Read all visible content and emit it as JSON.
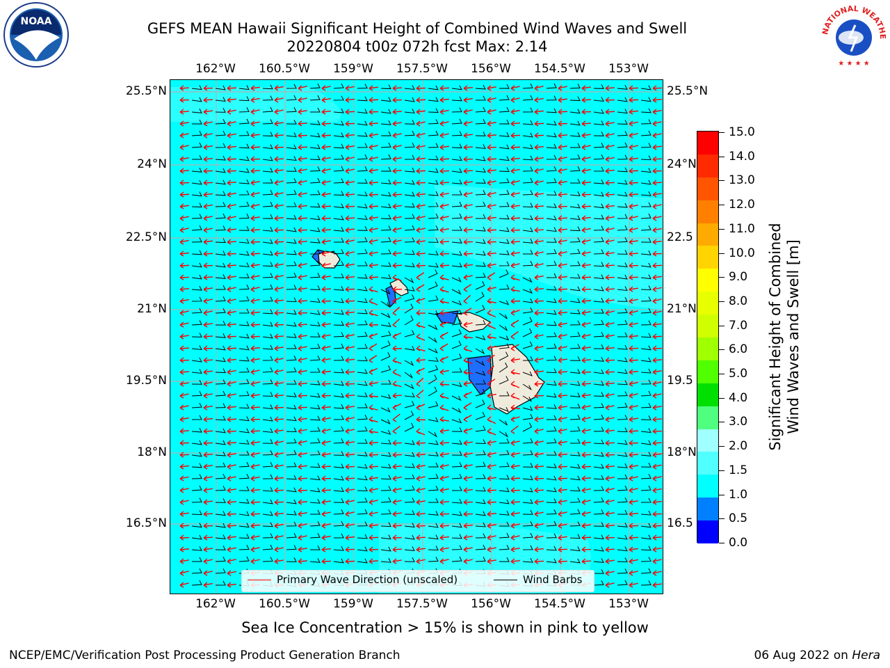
{
  "header": {
    "title_line1": "GEFS MEAN Hawaii Significant Height of Combined Wind Waves and Swell",
    "title_line2": "20220804 t00z 072h fcst   Max: 2.14"
  },
  "map": {
    "lon_labels": [
      "162°W",
      "160.5°W",
      "159°W",
      "157.5°W",
      "156°W",
      "154.5°W",
      "153°W"
    ],
    "lat_labels_left": [
      "25.5°N",
      "24°N",
      "22.5°N",
      "21°N",
      "19.5°N",
      "18°N",
      "16.5°N"
    ],
    "lat_labels_right": [
      "25.5°N",
      "24°N",
      "22.5",
      "21°N",
      "19.5",
      "18°N",
      "16.5"
    ],
    "ocean_color": "#00ffff",
    "land_color": "#efebdc",
    "wave_arrow_color": "#ff0000",
    "wind_barb_color": "#000000",
    "legend": {
      "wave_label": "Primary Wave Direction (unscaled)",
      "wind_label": "Wind Barbs"
    }
  },
  "colorbar": {
    "label": "Significant Height of Combined Wind Waves and Swell [m]",
    "label_line1": "Significant Height of Combined",
    "label_line2": "Wind Waves and Swell [m]",
    "ticks": [
      "15.0",
      "14.0",
      "13.0",
      "12.0",
      "11.0",
      "10.0",
      "9.0",
      "8.0",
      "7.0",
      "6.0",
      "5.0",
      "4.0",
      "3.0",
      "2.0",
      "1.5",
      "1.0",
      "0.5",
      "0.0"
    ],
    "colors_top_to_bottom": [
      "#ff0000",
      "#ff2a00",
      "#ff5500",
      "#ff8000",
      "#ffaa00",
      "#ffd400",
      "#ffff00",
      "#e8ff00",
      "#d0ff00",
      "#a0ff00",
      "#50ff00",
      "#00e000",
      "#50ff80",
      "#a0ffff",
      "#50ffff",
      "#00ffff",
      "#0080ff",
      "#0000ff"
    ]
  },
  "notes": {
    "sea_ice": "Sea Ice Concentration > 15% is shown in pink to yellow"
  },
  "footer": {
    "left": "NCEP/EMC/Verification Post Processing Product Generation Branch",
    "date": "06 Aug 2022 on",
    "host": "Hera"
  },
  "logos": {
    "noaa_text": "NOAA",
    "nws_text": "NATIONAL WEATHER SERVICE"
  }
}
